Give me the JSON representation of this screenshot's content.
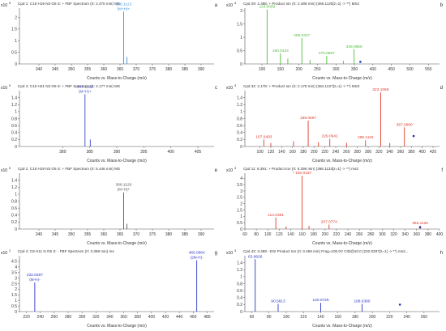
{
  "figure": {
    "mass_axis_label": "Counts vs. Mass-to-Charge (m/z)"
  },
  "chart_data": [
    {
      "id": "a",
      "type": "bar",
      "panel_letter": "a",
      "color": "#3a8fd8",
      "title": "Cpd 1: C18 H19 N3 O5 S: + FBF Spectrum (rt: 2.470 min) MS",
      "xlabel": "Counts vs. Mass-to-Charge (m/z)",
      "scale_label": "x10",
      "scale_exp": "5",
      "xlim": [
        334,
        394
      ],
      "xticks": [
        340,
        345,
        350,
        355,
        360,
        365,
        370,
        375,
        380,
        385,
        390
      ],
      "ylim": [
        0,
        2.4
      ],
      "yticks": [
        0,
        0.5,
        1,
        1.5,
        2
      ],
      "peaks": [
        {
          "x": 366.1121,
          "y": 2.25,
          "label": "366.1121",
          "sub": "(M+H)+"
        },
        {
          "x": 367.1,
          "y": 0.3
        }
      ],
      "markers": []
    },
    {
      "id": "b",
      "type": "bar",
      "panel_letter": "b",
      "color": "#4dbb3a",
      "title": "Cpd 29: 2.488: + Product Ion (rt: 2.488 min) (366.1120[z=1] -> **) MS2",
      "xlabel": "Counts vs. Mass-to-Charge (m/z)",
      "scale_label": "x10",
      "scale_exp": "3",
      "xlim": [
        54,
        580
      ],
      "xticks": [
        100,
        150,
        200,
        250,
        300,
        350,
        400,
        450,
        500,
        550
      ],
      "ylim": [
        0,
        2.1
      ],
      "yticks": [
        0,
        0.5,
        1,
        1.5,
        2
      ],
      "peaks": [
        {
          "x": 114.0009,
          "y": 2.05,
          "label": "114.0009"
        },
        {
          "x": 150.0433,
          "y": 0.4,
          "label": "150.0433"
        },
        {
          "x": 208.0427,
          "y": 0.98,
          "label": "208.0427"
        },
        {
          "x": 275.0857,
          "y": 0.3,
          "label": "275.0857"
        },
        {
          "x": 349.0866,
          "y": 0.55,
          "label": "349.0866"
        },
        {
          "x": 170,
          "y": 0.2
        },
        {
          "x": 230,
          "y": 0.15
        },
        {
          "x": 320,
          "y": 0.12
        }
      ],
      "markers": [
        {
          "x": 366.1,
          "y": 0.08
        }
      ]
    },
    {
      "id": "c",
      "type": "bar",
      "panel_letter": "c",
      "color": "#3a48c0",
      "title": "Cpd 4: C16 H21 N3 O6 S: + FBF Spectrum (rt: 2.177 min) MS",
      "xlabel": "Counts vs. Mass-to-Charge (m/z)",
      "scale_label": "x10",
      "scale_exp": "5",
      "xlim": [
        372,
        408
      ],
      "xticks": [
        380,
        385,
        390,
        395,
        400,
        405
      ],
      "ylim": [
        0,
        1.6
      ],
      "yticks": [
        0,
        0.2,
        0.4,
        0.6,
        0.8,
        1,
        1.2,
        1.4
      ],
      "peaks": [
        {
          "x": 384.1226,
          "y": 1.5,
          "label": "384.1226",
          "sub": "(M+H)+"
        },
        {
          "x": 385.1,
          "y": 0.2
        }
      ],
      "markers": []
    },
    {
      "id": "d",
      "type": "bar",
      "panel_letter": "d",
      "color": "#e03a2a",
      "title": "Cpd 32: 2.178: + Product Ion (rt: 2.178 min) (384.1227[z=1] -> **) MS2",
      "xlabel": "Counts vs. Mass-to-Charge (m/z)",
      "scale_label": "x10",
      "scale_exp": "3",
      "xlim": [
        72,
        432
      ],
      "xticks": [
        100,
        120,
        140,
        160,
        180,
        200,
        220,
        240,
        260,
        280,
        300,
        320,
        340,
        360,
        380,
        400,
        420
      ],
      "ylim": [
        0,
        1.6
      ],
      "yticks": [
        0,
        0.2,
        0.4,
        0.6,
        0.8,
        1,
        1.2,
        1.4
      ],
      "peaks": [
        {
          "x": 323.1065,
          "y": 1.55,
          "label": "323.1065"
        },
        {
          "x": 189.0697,
          "y": 0.74,
          "label": "189.0697"
        },
        {
          "x": 107.0493,
          "y": 0.2,
          "label": "107.0493"
        },
        {
          "x": 229.0641,
          "y": 0.22,
          "label": "229.0641"
        },
        {
          "x": 295.1115,
          "y": 0.18,
          "label": "295.1115"
        },
        {
          "x": 367.096,
          "y": 0.55,
          "label": "367.0960"
        },
        {
          "x": 120,
          "y": 0.1
        },
        {
          "x": 162,
          "y": 0.15
        },
        {
          "x": 208,
          "y": 0.12
        },
        {
          "x": 260,
          "y": 0.1
        },
        {
          "x": 340,
          "y": 0.1
        }
      ],
      "markers": [
        {
          "x": 384.1,
          "y": 0.3
        }
      ]
    },
    {
      "id": "e",
      "type": "bar",
      "panel_letter": "e",
      "color": "#555555",
      "title": "Cpd 1: C18 H19 N3 O5 S: + FBF Spectrum (rt: 6.446 min) MS",
      "xlabel": "Counts vs. Mass-to-Charge (m/z)",
      "scale_label": "x10",
      "scale_exp": "5",
      "xlim": [
        334,
        394
      ],
      "xticks": [
        340,
        345,
        350,
        355,
        360,
        365,
        370,
        375,
        380,
        385,
        390
      ],
      "ylim": [
        0,
        1.6
      ],
      "yticks": [
        0,
        0.2,
        0.4,
        0.6,
        0.8,
        1,
        1.2,
        1.4
      ],
      "peaks": [
        {
          "x": 366.1126,
          "y": 1.05,
          "label": "366.1126",
          "sub": "(M+H)+"
        },
        {
          "x": 367.1,
          "y": 0.15
        }
      ],
      "markers": []
    },
    {
      "id": "f",
      "type": "bar",
      "panel_letter": "f",
      "color": "#e03a2a",
      "title": "Cpd 11: 6.391: + Product Ion (rt: 6.395 min) (366.1133[z=1] -> **) ms2",
      "xlabel": "Counts vs. Mass-to-Charge (m/z)",
      "scale_label": "x10",
      "scale_exp": "3",
      "xlim": [
        60,
        400
      ],
      "xticks": [
        60,
        80,
        100,
        120,
        140,
        160,
        180,
        200,
        220,
        240,
        260,
        280,
        300,
        320,
        340,
        360,
        380,
        400
      ],
      "ylim": [
        0,
        4.4
      ],
      "yticks": [
        0,
        0.5,
        1,
        1.5,
        2,
        2.5,
        3,
        3.5,
        4
      ],
      "peaks": [
        {
          "x": 160.0437,
          "y": 4.2,
          "label": "* 160.0437"
        },
        {
          "x": 114.0381,
          "y": 0.9,
          "label": "114.0381"
        },
        {
          "x": 207.0774,
          "y": 0.35,
          "label": "207.0774"
        },
        {
          "x": 366.1126,
          "y": 0.25,
          "label": "366.1126"
        },
        {
          "x": 132,
          "y": 0.2
        },
        {
          "x": 172,
          "y": 0.25
        }
      ],
      "markers": [
        {
          "x": 366.1,
          "y": 0.15
        }
      ]
    },
    {
      "id": "g",
      "type": "bar",
      "panel_letter": "g",
      "color": "#2a35c8",
      "title": "Cpd 4: C8 H11 N O5 S: - FBF Spectrum (rt: 3.398 min) ms",
      "xlabel": "Counts vs. Mass-to-Charge (m/z)",
      "scale_label": "x10",
      "scale_exp": "2",
      "xlim": [
        210,
        490
      ],
      "xticks": [
        220,
        240,
        260,
        280,
        300,
        320,
        340,
        360,
        380,
        400,
        420,
        440,
        460,
        480
      ],
      "ylim": [
        0,
        5
      ],
      "yticks": [
        0,
        0.5,
        1,
        1.5,
        2,
        2.5,
        3,
        3.5,
        4,
        4.5
      ],
      "peaks": [
        {
          "x": 232.0287,
          "y": 2.6,
          "label": "232.0287",
          "sub": "(M-H)-"
        },
        {
          "x": 465.0664,
          "y": 4.6,
          "label": "465.0664",
          "sub": "(2M-H)-"
        }
      ],
      "markers": []
    },
    {
      "id": "h",
      "type": "bar",
      "panel_letter": "h",
      "color": "#2a35c8",
      "title": "Cpd 42: 3.469: -ESI Product Ion (rt: 3.469 min) Frag=100.0V CID@10.0 (232.0287[z=1] -> **) ms2...",
      "xlabel": "Counts vs. Mass-to-Charge (m/z)",
      "scale_label": "x10",
      "scale_exp": "3",
      "xlim": [
        52,
        278
      ],
      "xticks": [
        60,
        80,
        100,
        120,
        140,
        160,
        180,
        200,
        220,
        240,
        260
      ],
      "ylim": [
        0,
        1.6
      ],
      "yticks": [
        0,
        0.2,
        0.4,
        0.6,
        0.8,
        1,
        1.2,
        1.4
      ],
      "peaks": [
        {
          "x": 63.9626,
          "y": 1.5,
          "label": "63.9626"
        },
        {
          "x": 90.5813,
          "y": 0.22,
          "label": "90.5813"
        },
        {
          "x": 140.0725,
          "y": 0.25,
          "label": "140.0725"
        },
        {
          "x": 188.038,
          "y": 0.22,
          "label": "188.0380"
        }
      ],
      "markers": [
        {
          "x": 232.0,
          "y": 0.2
        }
      ]
    }
  ]
}
